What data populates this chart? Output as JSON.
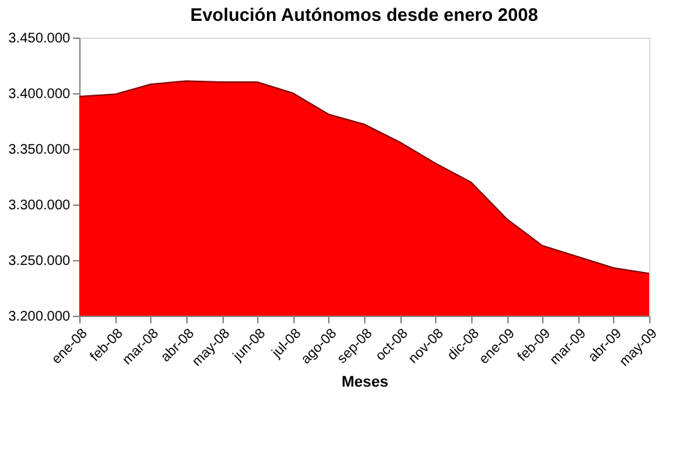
{
  "chart_data": {
    "type": "area",
    "title": "Evolución Autónomos desde enero 2008",
    "xlabel": "Meses",
    "categories": [
      "ene-08",
      "feb-08",
      "mar-08",
      "abr-08",
      "may-08",
      "jun-08",
      "jul-08",
      "ago-08",
      "sep-08",
      "oct-08",
      "nov-08",
      "dic-08",
      "ene-09",
      "feb-09",
      "mar-09",
      "abr-09",
      "may-09"
    ],
    "values": [
      3397000,
      3399000,
      3408000,
      3411000,
      3410000,
      3410000,
      3400000,
      3381000,
      3372000,
      3356000,
      3337000,
      3320000,
      3287000,
      3263000,
      3253000,
      3243000,
      3238000
    ],
    "color": "#ff0000",
    "ylim": [
      3200000,
      3450000
    ],
    "yticks": [
      {
        "value": 3200000,
        "label": "3.200.000"
      },
      {
        "value": 3250000,
        "label": "3.250.000"
      },
      {
        "value": 3300000,
        "label": "3.300.000"
      },
      {
        "value": 3350000,
        "label": "3.350.000"
      },
      {
        "value": 3400000,
        "label": "3.400.000"
      },
      {
        "value": 3450000,
        "label": "3.450.000"
      }
    ],
    "grid": false
  }
}
